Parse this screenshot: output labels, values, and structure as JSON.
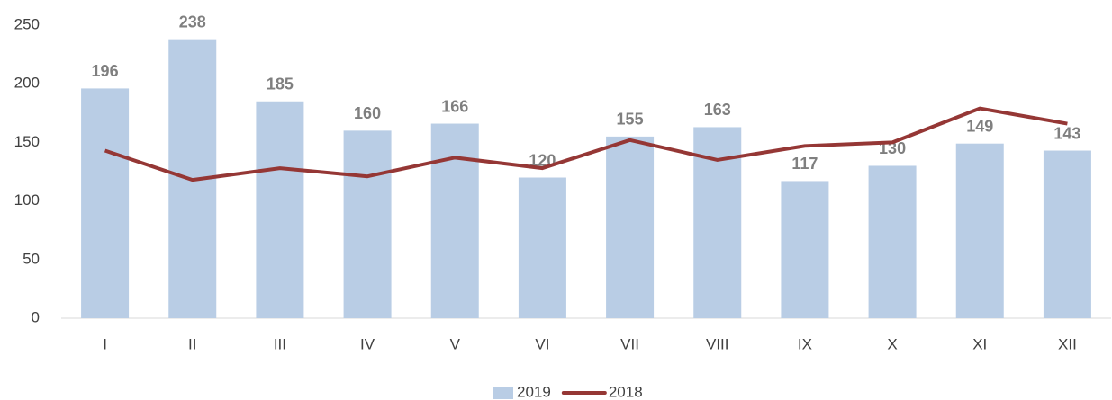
{
  "chart_data": {
    "type": "bar",
    "categories": [
      "I",
      "II",
      "III",
      "IV",
      "V",
      "VI",
      "VII",
      "VIII",
      "IX",
      "X",
      "XI",
      "XII"
    ],
    "series": [
      {
        "name": "2019",
        "type": "bar",
        "color": "#b9cde5",
        "data_labels": true,
        "values": [
          196,
          238,
          185,
          160,
          166,
          120,
          155,
          163,
          117,
          130,
          149,
          143
        ]
      },
      {
        "name": "2018",
        "type": "line",
        "color": "#953735",
        "data_labels": false,
        "values": [
          143,
          118,
          128,
          121,
          137,
          128,
          152,
          135,
          147,
          150,
          179,
          166
        ]
      }
    ],
    "ylim": [
      0,
      250
    ],
    "yticks": [
      0,
      50,
      100,
      150,
      200,
      250
    ],
    "grid": false,
    "legend": "bottom"
  }
}
